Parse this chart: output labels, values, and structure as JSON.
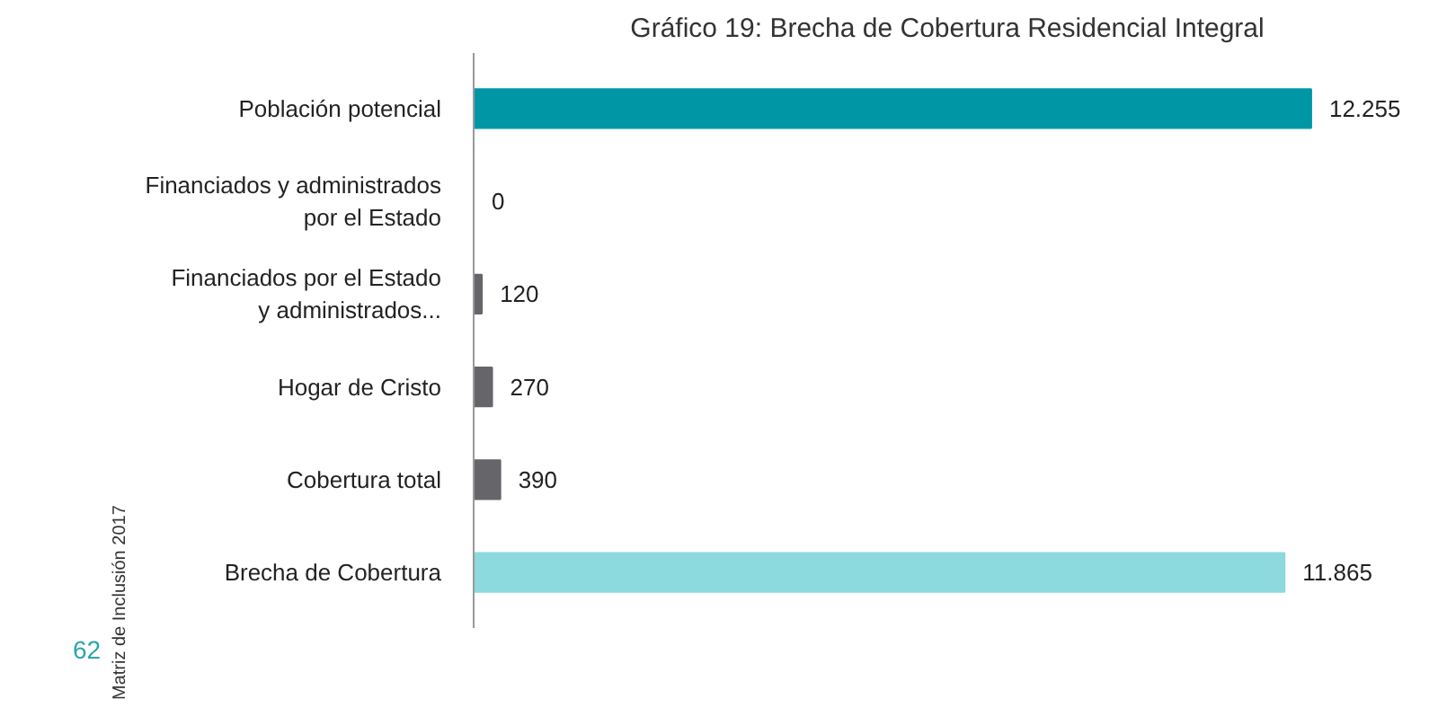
{
  "chart_data": {
    "type": "bar",
    "orientation": "horizontal",
    "title": "Gráfico 19: Brecha de Cobertura Residencial Integral",
    "categories": [
      "Población potencial",
      "Financiados y administrados\npor el Estado",
      "Financiados por el Estado\ny administrados...",
      "Hogar de Cristo",
      "Cobertura total",
      "Brecha de Cobertura"
    ],
    "values": [
      12255,
      0,
      120,
      270,
      390,
      11865
    ],
    "value_labels": [
      "12.255",
      "0",
      "120",
      "270",
      "390",
      "11.865"
    ],
    "colors": [
      "#0096a6",
      "#66656a",
      "#66656a",
      "#66656a",
      "#66656a",
      "#8cd9de"
    ],
    "tick_labels": "y",
    "grid": false,
    "annotations": [
      "Matriz de Inclusión 2017",
      "62"
    ]
  }
}
